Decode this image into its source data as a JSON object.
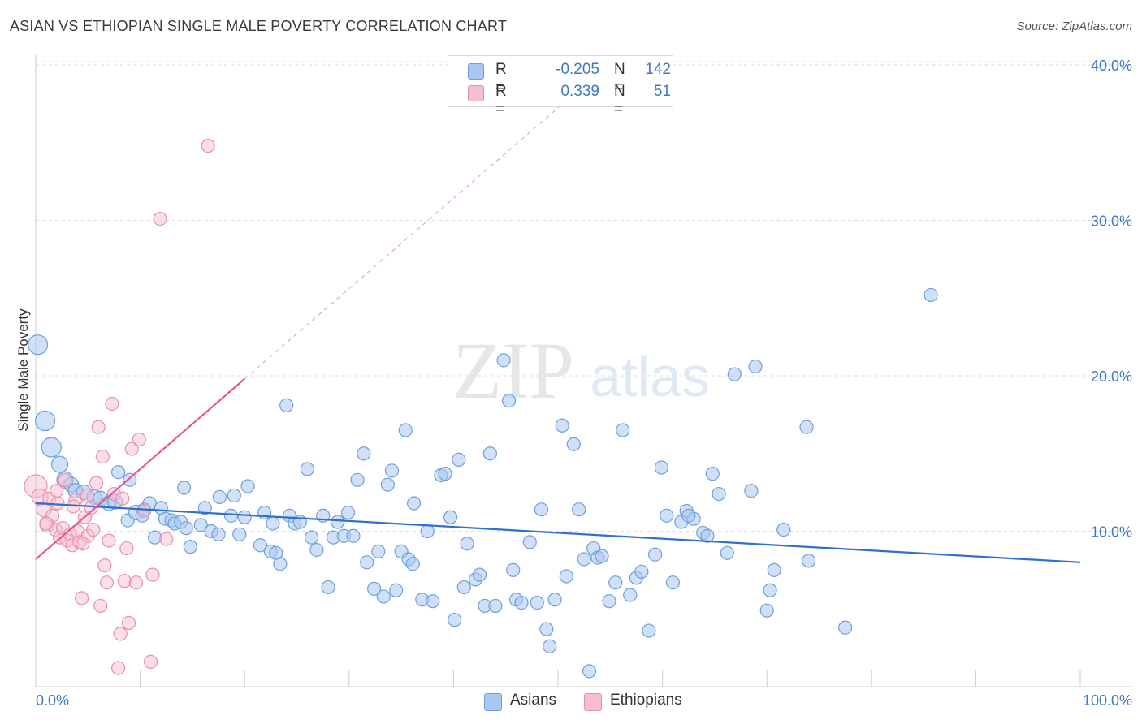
{
  "title": "ASIAN VS ETHIOPIAN SINGLE MALE POVERTY CORRELATION CHART",
  "source": "Source: ZipAtlas.com",
  "watermark": {
    "zip": "ZIP",
    "atlas": "atlas"
  },
  "colors": {
    "asian_fill": "#a9c8f0",
    "asian_stroke": "#6e9fdc",
    "asian_line": "#2f70cc",
    "ethiopian_fill": "#f6bfd1",
    "ethiopian_stroke": "#ea8fae",
    "ethiopian_line": "#e8578a",
    "tick_label": "#3b78c8",
    "grid": "#dddddd"
  },
  "legend": {
    "rows": [
      {
        "r_label": "R =",
        "r_value": "-0.205",
        "n_label": "N =",
        "n_value": "142"
      },
      {
        "r_label": "R =",
        "r_value": "0.339",
        "n_label": "N =",
        "n_value": "51"
      }
    ],
    "bottom": [
      {
        "label": "Asians"
      },
      {
        "label": "Ethiopians"
      }
    ]
  },
  "chart_data": {
    "type": "scatter",
    "xlabel": "",
    "ylabel": "Single Male Poverty",
    "xlim": [
      0,
      100
    ],
    "ylim": [
      0,
      40
    ],
    "x_tick_labels": [
      "0.0%",
      "100.0%"
    ],
    "y_ticks": [
      10,
      20,
      30,
      40
    ],
    "y_tick_labels": [
      "10.0%",
      "20.0%",
      "30.0%",
      "40.0%"
    ],
    "grid": "horizontal dashed",
    "legend_position": "top-center",
    "series": [
      {
        "name": "Asians",
        "trend": {
          "x": [
            0,
            100
          ],
          "y": [
            11.8,
            8.0
          ]
        },
        "points": [
          [
            0.2,
            22.0,
            12
          ],
          [
            0.9,
            17.1,
            12
          ],
          [
            1.5,
            15.4,
            12
          ],
          [
            2.3,
            14.3,
            10
          ],
          [
            2.8,
            13.3,
            10
          ],
          [
            3.4,
            13.0,
            9
          ],
          [
            3.8,
            12.6,
            9
          ],
          [
            4.6,
            12.5,
            9
          ],
          [
            5.6,
            12.2,
            9
          ],
          [
            6.2,
            12.1,
            9
          ],
          [
            7.0,
            11.8,
            9
          ],
          [
            7.6,
            11.9,
            9
          ],
          [
            7.9,
            13.8,
            8
          ],
          [
            8.8,
            10.7,
            8
          ],
          [
            9.0,
            13.3,
            8
          ],
          [
            9.6,
            11.2,
            9
          ],
          [
            10.2,
            11.0,
            8
          ],
          [
            10.4,
            11.4,
            8
          ],
          [
            10.9,
            11.8,
            8
          ],
          [
            11.4,
            9.6,
            8
          ],
          [
            12.0,
            11.5,
            8
          ],
          [
            12.4,
            10.8,
            8
          ],
          [
            13.0,
            10.7,
            8
          ],
          [
            13.3,
            10.5,
            8
          ],
          [
            13.9,
            10.6,
            8
          ],
          [
            14.4,
            10.2,
            8
          ],
          [
            14.8,
            9.0,
            8
          ],
          [
            14.2,
            12.8,
            8
          ],
          [
            15.8,
            10.4,
            8
          ],
          [
            16.2,
            11.5,
            8
          ],
          [
            16.8,
            10.0,
            8
          ],
          [
            17.5,
            9.8,
            8
          ],
          [
            17.6,
            12.2,
            8
          ],
          [
            18.7,
            11.0,
            8
          ],
          [
            19.0,
            12.3,
            8
          ],
          [
            19.5,
            9.8,
            8
          ],
          [
            20.0,
            10.9,
            8
          ],
          [
            20.3,
            12.9,
            8
          ],
          [
            21.5,
            9.1,
            8
          ],
          [
            21.9,
            11.2,
            8
          ],
          [
            22.5,
            8.7,
            8
          ],
          [
            23.0,
            8.6,
            8
          ],
          [
            23.4,
            7.9,
            8
          ],
          [
            24.0,
            18.1,
            8
          ],
          [
            24.3,
            11.0,
            8
          ],
          [
            24.8,
            10.5,
            8
          ],
          [
            25.3,
            10.6,
            8
          ],
          [
            26.0,
            14.0,
            8
          ],
          [
            26.4,
            9.6,
            8
          ],
          [
            26.9,
            8.8,
            8
          ],
          [
            27.5,
            11.0,
            8
          ],
          [
            28.0,
            6.4,
            8
          ],
          [
            28.5,
            9.6,
            8
          ],
          [
            28.9,
            10.6,
            8
          ],
          [
            29.5,
            9.7,
            8
          ],
          [
            29.9,
            11.2,
            8
          ],
          [
            30.4,
            9.7,
            8
          ],
          [
            30.8,
            13.3,
            8
          ],
          [
            31.4,
            15.0,
            8
          ],
          [
            31.7,
            8.0,
            8
          ],
          [
            32.4,
            6.3,
            8
          ],
          [
            32.8,
            8.7,
            8
          ],
          [
            33.3,
            5.8,
            8
          ],
          [
            33.7,
            13.0,
            8
          ],
          [
            34.1,
            13.9,
            8
          ],
          [
            34.5,
            6.2,
            8
          ],
          [
            35.0,
            8.7,
            8
          ],
          [
            35.4,
            16.5,
            8
          ],
          [
            35.7,
            8.2,
            8
          ],
          [
            36.2,
            11.8,
            8
          ],
          [
            37.0,
            5.6,
            8
          ],
          [
            37.5,
            10.0,
            8
          ],
          [
            38.0,
            5.5,
            8
          ],
          [
            38.8,
            13.6,
            8
          ],
          [
            39.2,
            13.7,
            8
          ],
          [
            39.7,
            10.9,
            8
          ],
          [
            40.1,
            4.3,
            8
          ],
          [
            40.5,
            14.6,
            8
          ],
          [
            41.0,
            6.4,
            8
          ],
          [
            41.3,
            9.2,
            8
          ],
          [
            42.1,
            6.9,
            8
          ],
          [
            42.5,
            7.2,
            8
          ],
          [
            43.0,
            5.2,
            8
          ],
          [
            43.5,
            15.0,
            8
          ],
          [
            44.0,
            5.2,
            8
          ],
          [
            44.8,
            21.0,
            8
          ],
          [
            45.3,
            18.4,
            8
          ],
          [
            45.7,
            7.5,
            8
          ],
          [
            46.0,
            5.6,
            8
          ],
          [
            46.5,
            5.4,
            8
          ],
          [
            47.3,
            9.3,
            8
          ],
          [
            48.0,
            5.4,
            8
          ],
          [
            48.4,
            11.4,
            8
          ],
          [
            48.9,
            3.7,
            8
          ],
          [
            49.2,
            2.6,
            8
          ],
          [
            49.7,
            5.6,
            8
          ],
          [
            50.4,
            16.8,
            8
          ],
          [
            50.8,
            7.1,
            8
          ],
          [
            51.5,
            15.6,
            8
          ],
          [
            52.0,
            11.4,
            8
          ],
          [
            52.5,
            8.2,
            8
          ],
          [
            53.0,
            1.0,
            8
          ],
          [
            53.4,
            8.9,
            8
          ],
          [
            53.8,
            8.3,
            8
          ],
          [
            54.2,
            8.4,
            8
          ],
          [
            54.9,
            5.5,
            8
          ],
          [
            55.5,
            6.7,
            8
          ],
          [
            56.2,
            16.5,
            8
          ],
          [
            56.9,
            5.9,
            8
          ],
          [
            57.5,
            7.0,
            8
          ],
          [
            58.0,
            7.4,
            8
          ],
          [
            58.7,
            3.6,
            8
          ],
          [
            59.3,
            8.5,
            8
          ],
          [
            59.9,
            14.1,
            8
          ],
          [
            60.4,
            11.0,
            8
          ],
          [
            61.0,
            6.7,
            8
          ],
          [
            61.8,
            10.6,
            8
          ],
          [
            62.3,
            11.3,
            8
          ],
          [
            63.0,
            10.8,
            8
          ],
          [
            63.9,
            9.9,
            8
          ],
          [
            64.3,
            9.7,
            8
          ],
          [
            64.8,
            13.7,
            8
          ],
          [
            65.4,
            12.4,
            8
          ],
          [
            66.2,
            8.6,
            8
          ],
          [
            66.9,
            20.1,
            8
          ],
          [
            68.5,
            12.6,
            8
          ],
          [
            68.9,
            20.6,
            8
          ],
          [
            70.0,
            4.9,
            8
          ],
          [
            70.3,
            6.2,
            8
          ],
          [
            70.7,
            7.5,
            8
          ],
          [
            71.6,
            10.1,
            8
          ],
          [
            73.8,
            16.7,
            8
          ],
          [
            74.0,
            8.1,
            8
          ],
          [
            77.5,
            3.8,
            8
          ],
          [
            85.7,
            25.2,
            8
          ],
          [
            62.5,
            11.0,
            8
          ],
          [
            22.7,
            10.5,
            8
          ],
          [
            36.1,
            7.9,
            8
          ]
        ]
      },
      {
        "name": "Ethiopians",
        "trend": {
          "x": [
            0,
            20
          ],
          "y": [
            8.2,
            19.8
          ]
        },
        "trend_dashed": {
          "x": [
            20,
            52
          ],
          "y": [
            19.8,
            38.4
          ]
        },
        "points": [
          [
            0.0,
            12.9,
            14
          ],
          [
            0.4,
            12.2,
            10
          ],
          [
            0.8,
            11.4,
            9
          ],
          [
            1.1,
            10.4,
            9
          ],
          [
            1.3,
            12.1,
            8
          ],
          [
            1.6,
            11.0,
            8
          ],
          [
            1.9,
            10.1,
            8
          ],
          [
            2.1,
            11.8,
            8
          ],
          [
            2.3,
            9.6,
            8
          ],
          [
            2.6,
            10.2,
            8
          ],
          [
            2.8,
            13.3,
            8
          ],
          [
            3.0,
            9.4,
            8
          ],
          [
            3.3,
            9.8,
            8
          ],
          [
            3.5,
            9.1,
            8
          ],
          [
            3.8,
            12.0,
            8
          ],
          [
            4.0,
            10.0,
            8
          ],
          [
            4.2,
            9.3,
            8
          ],
          [
            4.4,
            5.7,
            8
          ],
          [
            4.7,
            10.9,
            8
          ],
          [
            4.9,
            12.3,
            8
          ],
          [
            5.0,
            9.7,
            8
          ],
          [
            5.3,
            11.5,
            8
          ],
          [
            5.5,
            10.1,
            8
          ],
          [
            5.8,
            13.1,
            8
          ],
          [
            6.0,
            16.7,
            8
          ],
          [
            6.2,
            5.2,
            8
          ],
          [
            6.4,
            14.8,
            8
          ],
          [
            6.6,
            7.8,
            8
          ],
          [
            6.8,
            6.7,
            8
          ],
          [
            7.0,
            9.4,
            8
          ],
          [
            7.3,
            18.2,
            8
          ],
          [
            7.5,
            12.4,
            8
          ],
          [
            7.9,
            1.2,
            8
          ],
          [
            8.1,
            3.4,
            8
          ],
          [
            8.3,
            12.1,
            8
          ],
          [
            8.5,
            6.8,
            8
          ],
          [
            8.7,
            8.9,
            8
          ],
          [
            8.9,
            4.1,
            8
          ],
          [
            9.2,
            15.3,
            8
          ],
          [
            9.6,
            6.7,
            8
          ],
          [
            9.9,
            15.9,
            8
          ],
          [
            10.4,
            11.3,
            8
          ],
          [
            11.0,
            1.6,
            8
          ],
          [
            11.2,
            7.2,
            8
          ],
          [
            12.5,
            9.5,
            8
          ],
          [
            11.9,
            30.1,
            8
          ],
          [
            16.5,
            34.8,
            8
          ],
          [
            3.6,
            11.6,
            8
          ],
          [
            1.0,
            10.5,
            8
          ],
          [
            4.5,
            9.2,
            8
          ],
          [
            2.0,
            12.6,
            8
          ]
        ]
      }
    ]
  }
}
